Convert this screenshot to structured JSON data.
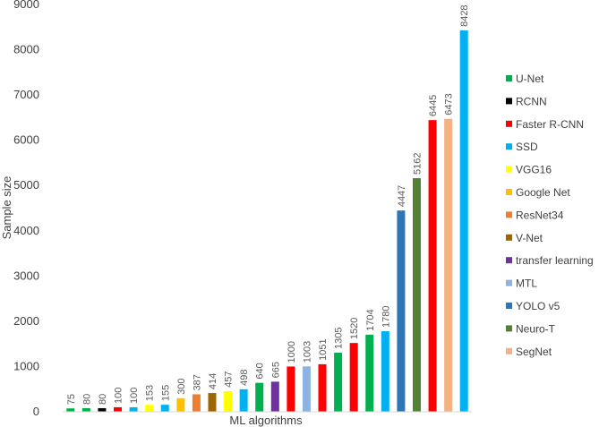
{
  "chart_data": {
    "type": "bar",
    "xlabel": "ML algorithms",
    "ylabel": "Sample size",
    "ylim": [
      0,
      9000
    ],
    "yticks": [
      0,
      1000,
      2000,
      3000,
      4000,
      5000,
      6000,
      7000,
      8000,
      9000
    ],
    "grid": false,
    "legend_position": "right",
    "legend": [
      {
        "name": "U-Net",
        "color": "#00b050"
      },
      {
        "name": "RCNN",
        "color": "#000000"
      },
      {
        "name": "Faster R-CNN",
        "color": "#ff0000"
      },
      {
        "name": "SSD",
        "color": "#00b0f0"
      },
      {
        "name": "VGG16",
        "color": "#ffff00"
      },
      {
        "name": "Google Net",
        "color": "#ffc000"
      },
      {
        "name": "ResNet34",
        "color": "#ed7d31"
      },
      {
        "name": "V-Net",
        "color": "#9c6500"
      },
      {
        "name": " transfer learning",
        "color": "#7030a0"
      },
      {
        "name": "MTL",
        "color": "#8db3e2"
      },
      {
        "name": "YOLO v5",
        "color": "#2e75b6"
      },
      {
        "name": "Neuro-T",
        "color": "#548235"
      },
      {
        "name": "SegNet",
        "color": "#f4b183"
      }
    ],
    "bars": [
      {
        "value": 75,
        "label": "75",
        "series": "U-Net"
      },
      {
        "value": 80,
        "label": "80",
        "series": "U-Net"
      },
      {
        "value": 80,
        "label": "80",
        "series": "RCNN"
      },
      {
        "value": 100,
        "label": "100",
        "series": "Faster R-CNN"
      },
      {
        "value": 100,
        "label": "100",
        "series": "SSD"
      },
      {
        "value": 153,
        "label": "153",
        "series": "VGG16"
      },
      {
        "value": 155,
        "label": "155",
        "series": "SSD"
      },
      {
        "value": 300,
        "label": "300",
        "series": "Google Net"
      },
      {
        "value": 387,
        "label": "387",
        "series": "ResNet34"
      },
      {
        "value": 414,
        "label": "414",
        "series": "V-Net"
      },
      {
        "value": 457,
        "label": "457",
        "series": "VGG16"
      },
      {
        "value": 498,
        "label": "498",
        "series": "SSD"
      },
      {
        "value": 640,
        "label": "640",
        "series": "U-Net"
      },
      {
        "value": 665,
        "label": "665",
        "series": " transfer learning"
      },
      {
        "value": 1000,
        "label": "1000",
        "series": "Faster R-CNN"
      },
      {
        "value": 1003,
        "label": "1003",
        "series": "MTL"
      },
      {
        "value": 1051,
        "label": "1051",
        "series": "Faster R-CNN"
      },
      {
        "value": 1305,
        "label": "1305",
        "series": "U-Net"
      },
      {
        "value": 1520,
        "label": "1520",
        "series": "Faster R-CNN"
      },
      {
        "value": 1704,
        "label": "1704",
        "series": "U-Net"
      },
      {
        "value": 1780,
        "label": "1780",
        "series": "SSD"
      },
      {
        "value": 4447,
        "label": "4447",
        "series": "YOLO v5"
      },
      {
        "value": 5162,
        "label": "5162",
        "series": "Neuro-T"
      },
      {
        "value": 6445,
        "label": "6445",
        "series": "Faster R-CNN"
      },
      {
        "value": 6473,
        "label": "6473",
        "series": "SegNet"
      },
      {
        "value": 8428,
        "label": "8428",
        "series": "SSD"
      }
    ]
  }
}
